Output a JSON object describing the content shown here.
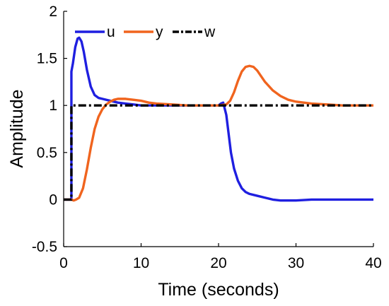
{
  "chart_data": {
    "type": "line",
    "xlabel": "Time (seconds)",
    "ylabel": "Amplitude",
    "xlim": [
      0,
      40
    ],
    "ylim": [
      -0.5,
      2
    ],
    "xticks": [
      "0",
      "10",
      "20",
      "30",
      "40"
    ],
    "yticks": [
      "-0.5",
      "0",
      "0.5",
      "1",
      "1.5",
      "2"
    ],
    "grid": false,
    "legend": "top-left",
    "series": [
      {
        "name": "u",
        "color": "#1f1fe0",
        "dash": "solid",
        "x": [
          0,
          1,
          1,
          1.2,
          1.5,
          1.8,
          2.0,
          2.3,
          2.6,
          3.0,
          3.5,
          4.0,
          4.5,
          5.0,
          6.0,
          7.0,
          8.0,
          9.0,
          10.0,
          12.0,
          15.0,
          18.0,
          20.0,
          20.3,
          20.6,
          21.0,
          21.3,
          21.6,
          22.0,
          22.5,
          23.0,
          23.5,
          24.0,
          25.0,
          26.0,
          27.0,
          28.0,
          29.0,
          30.0,
          32.0,
          35.0,
          40.0
        ],
        "y": [
          0,
          0,
          1.36,
          1.45,
          1.62,
          1.71,
          1.72,
          1.68,
          1.57,
          1.38,
          1.2,
          1.11,
          1.08,
          1.07,
          1.05,
          1.03,
          1.02,
          1.01,
          1.0,
          1.0,
          1.0,
          1.0,
          1.0,
          1.02,
          1.03,
          0.9,
          0.7,
          0.5,
          0.33,
          0.2,
          0.12,
          0.08,
          0.06,
          0.04,
          0.02,
          0.0,
          -0.01,
          -0.01,
          -0.01,
          0.0,
          0.0,
          0.0
        ]
      },
      {
        "name": "y",
        "color": "#f0641e",
        "dash": "solid",
        "x": [
          0,
          1.0,
          1.3,
          1.6,
          2.0,
          2.5,
          3.0,
          3.5,
          4.0,
          4.5,
          5.0,
          5.5,
          6.0,
          6.5,
          7.0,
          7.5,
          8.0,
          9.0,
          10.0,
          11.0,
          12.0,
          14.0,
          16.0,
          18.0,
          20.0,
          21.0,
          21.5,
          22.0,
          22.5,
          23.0,
          23.5,
          24.0,
          24.5,
          25.0,
          25.5,
          26.0,
          27.0,
          28.0,
          29.0,
          30.0,
          32.0,
          34.0,
          36.0,
          40.0
        ],
        "y": [
          0,
          0,
          -0.01,
          0.0,
          0.02,
          0.12,
          0.32,
          0.55,
          0.75,
          0.88,
          0.96,
          1.01,
          1.04,
          1.06,
          1.07,
          1.07,
          1.07,
          1.06,
          1.05,
          1.03,
          1.02,
          1.01,
          1.0,
          1.0,
          1.0,
          1.01,
          1.05,
          1.14,
          1.26,
          1.36,
          1.41,
          1.42,
          1.41,
          1.37,
          1.31,
          1.25,
          1.16,
          1.1,
          1.06,
          1.04,
          1.02,
          1.01,
          1.0,
          1.0
        ]
      },
      {
        "name": "w",
        "color": "#000000",
        "dash": "dashdot",
        "x": [
          0,
          1,
          1,
          40
        ],
        "y": [
          0,
          0,
          1,
          1
        ]
      }
    ]
  }
}
